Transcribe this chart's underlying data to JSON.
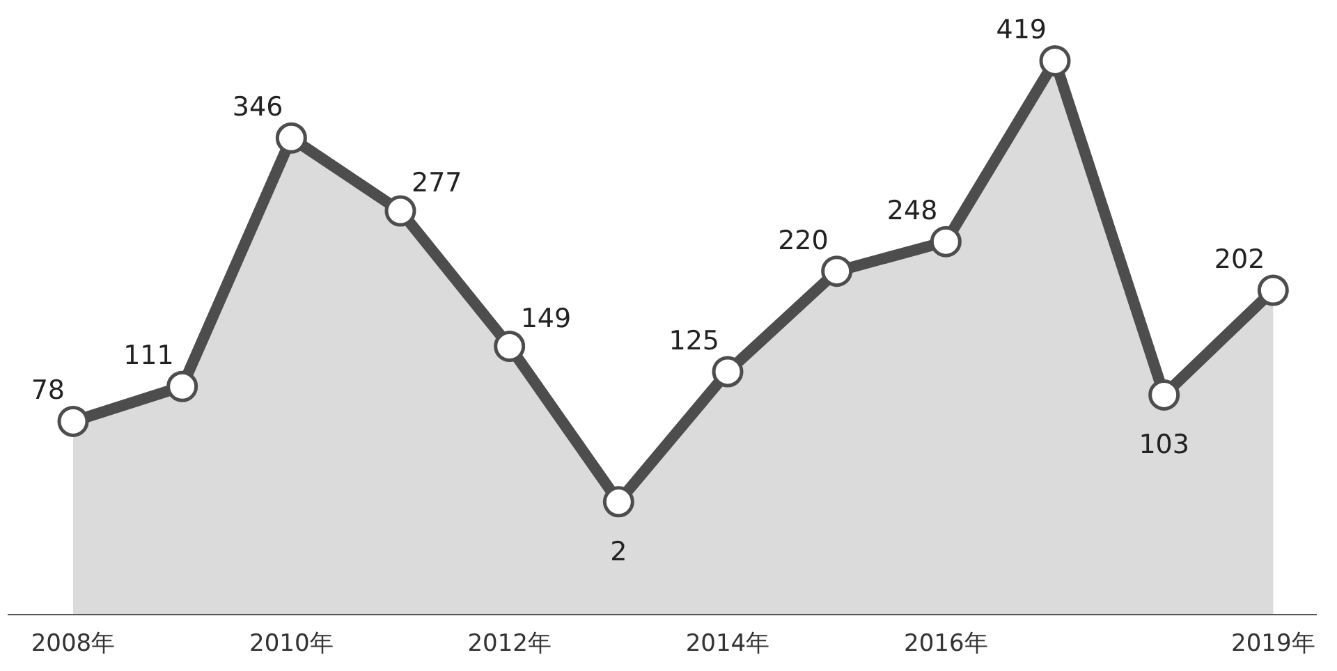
{
  "chart_data": {
    "type": "area",
    "categories": [
      "2008年",
      null,
      "2010年",
      null,
      "2012年",
      null,
      "2014年",
      null,
      "2016年",
      null,
      null,
      "2019年"
    ],
    "series": [
      {
        "color": "#4d4d4d",
        "values": [
          78,
          111,
          346,
          277,
          149,
          2,
          125,
          220,
          248,
          419,
          103,
          202
        ]
      }
    ],
    "data_labels": true,
    "marker": "circle",
    "grid": false
  }
}
